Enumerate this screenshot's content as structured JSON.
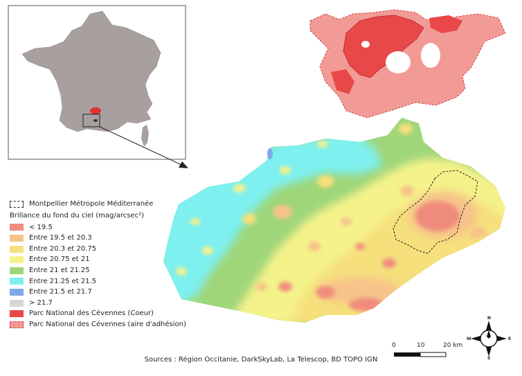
{
  "legend": {
    "boundary_label": "Montpellier Métropole Méditerranée",
    "title": "Brillance du fond du ciel (mag/arcsec²)",
    "classes": [
      {
        "label": "< 19.5",
        "color": "#f08c7e"
      },
      {
        "label": "Entre 19.5 et 20.3",
        "color": "#f7c38a"
      },
      {
        "label": "Entre 20.3 et 20.75",
        "color": "#f5e07c"
      },
      {
        "label": "Entre 20.75 et 21",
        "color": "#f5f28a"
      },
      {
        "label": "Entre 21 et 21.25",
        "color": "#9fd67a"
      },
      {
        "label": "Entre 21.25 et 21.5",
        "color": "#7ef0ef"
      },
      {
        "label": "Entre 21.5 et 21.7",
        "color": "#7ea8e8"
      },
      {
        "label": "> 21.7",
        "color": "#d6d6d6"
      }
    ],
    "park_core_label": "Parc National des Cévennes (Coeur)",
    "park_core_color": "#e84848",
    "park_adhesion_label": "Parc National des Cévennes (aire d'adhésion)",
    "park_adhesion_color": "#f29a96"
  },
  "scale": {
    "label_0": "0",
    "label_10": "10",
    "label_20": "20 km"
  },
  "compass": {
    "n": "N",
    "s": "S",
    "e": "E",
    "w": "W"
  },
  "source": "Sources : Région Occitanie, DarkSkyLab, La Telescop, BD TOPO IGN",
  "colors": {
    "france_fill": "#a89f9f",
    "frame": "#555555"
  }
}
